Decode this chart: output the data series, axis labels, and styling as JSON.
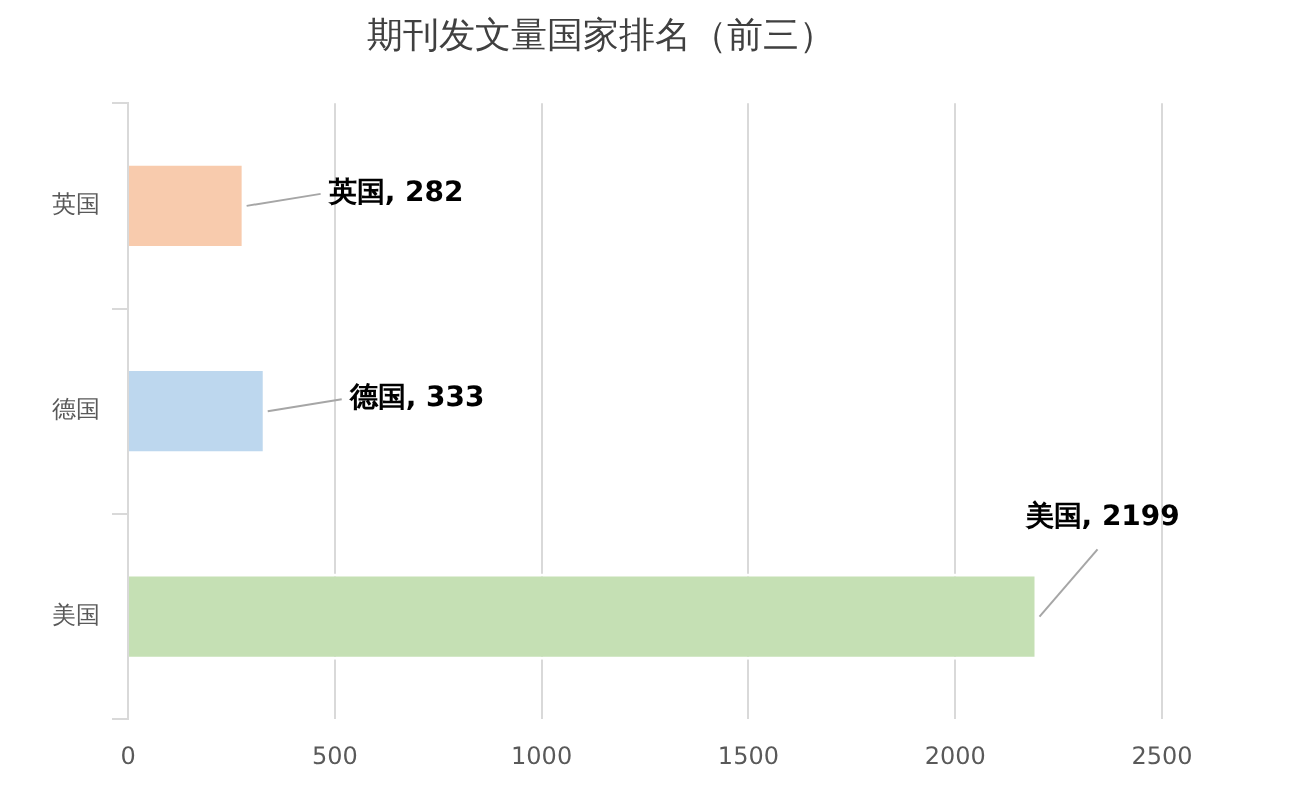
{
  "chart_data": {
    "type": "bar",
    "orientation": "horizontal",
    "title": "期刊发文量国家排名（前三）",
    "categories": [
      "英国",
      "德国",
      "美国"
    ],
    "values": [
      282,
      333,
      2199
    ],
    "colors": [
      "#f8cbad",
      "#bdd7ee",
      "#c5e0b4"
    ],
    "value_labels": [
      "英国, 282",
      "德国, 333",
      "美国, 2199"
    ],
    "xlim": [
      0,
      2500
    ],
    "xticks": [
      0,
      500,
      1000,
      1500,
      2000,
      2500
    ],
    "grid": "x"
  }
}
